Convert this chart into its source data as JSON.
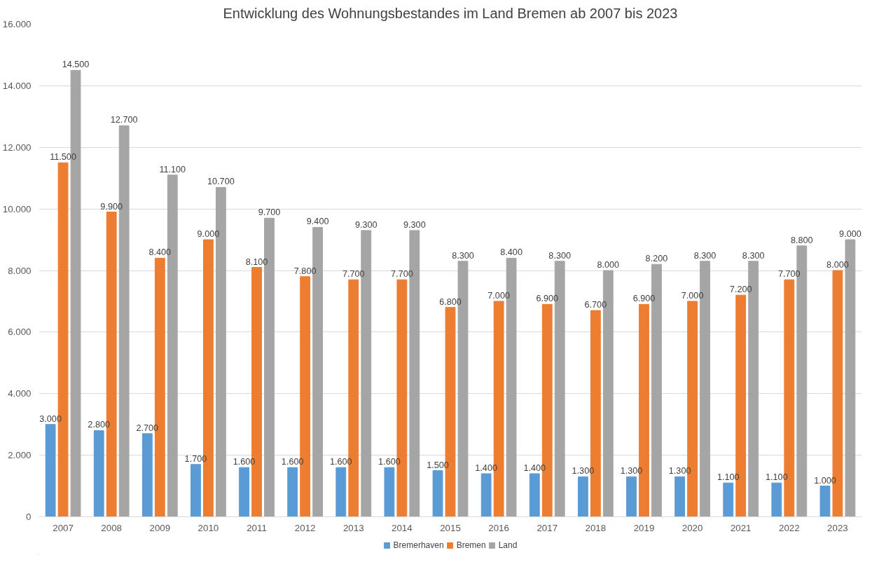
{
  "chart_data": {
    "type": "bar",
    "title": "Entwicklung des Wohnungsbestandes im Land Bremen ab 2007 bis 2023",
    "categories": [
      "2007",
      "2008",
      "2009",
      "2010",
      "2011",
      "2012",
      "2013",
      "2014",
      "2015",
      "2016",
      "2017",
      "2018",
      "2019",
      "2020",
      "2021",
      "2022",
      "2023"
    ],
    "series": [
      {
        "name": "Bremerhaven",
        "color": "#5b9bd5",
        "values": [
          3000,
          2800,
          2700,
          1700,
          1600,
          1600,
          1600,
          1600,
          1500,
          1400,
          1400,
          1300,
          1300,
          1300,
          1100,
          1100,
          1000
        ],
        "value_labels": [
          "3.000",
          "2.800",
          "2.700",
          "1.700",
          "1.600",
          "1.600",
          "1.600",
          "1.600",
          "1.500",
          "1.400",
          "1.400",
          "1.300",
          "1.300",
          "1.300",
          "1.100",
          "1.100",
          "1.000"
        ]
      },
      {
        "name": "Bremen",
        "color": "#ed7d31",
        "values": [
          11500,
          9900,
          8400,
          9000,
          8100,
          7800,
          7700,
          7700,
          6800,
          7000,
          6900,
          6700,
          6900,
          7000,
          7200,
          7700,
          8000
        ],
        "value_labels": [
          "11.500",
          "9.900",
          "8.400",
          "9.000",
          "8.100",
          "7.800",
          "7.700",
          "7.700",
          "6.800",
          "7.000",
          "6.900",
          "6.700",
          "6.900",
          "7.000",
          "7.200",
          "7.700",
          "8.000"
        ]
      },
      {
        "name": "Land",
        "color": "#a5a5a5",
        "values": [
          14500,
          12700,
          11100,
          10700,
          9700,
          9400,
          9300,
          9300,
          8300,
          8400,
          8300,
          8000,
          8200,
          8300,
          8300,
          8800,
          9000
        ],
        "value_labels": [
          "14.500",
          "12.700",
          "11.100",
          "10.700",
          "9.700",
          "9.400",
          "9.300",
          "9.300",
          "8.300",
          "8.400",
          "8.300",
          "8.000",
          "8.200",
          "8.300",
          "8.300",
          "8.800",
          "9.000"
        ]
      }
    ],
    "ylim": [
      0,
      16000
    ],
    "yticks": [
      0,
      {
        "value": 2000,
        "label": "2.000"
      },
      {
        "value": 4000,
        "label": "4.000"
      },
      {
        "value": 6000,
        "label": "6.000"
      },
      {
        "value": 8000,
        "label": "8.000"
      },
      {
        "value": 10000,
        "label": "10.000"
      },
      {
        "value": 12000,
        "label": "12.000"
      },
      {
        "value": 14000,
        "label": "14.000"
      },
      {
        "value": 16000,
        "label": "16.000"
      }
    ],
    "grid": "y",
    "legend": "bottom"
  }
}
